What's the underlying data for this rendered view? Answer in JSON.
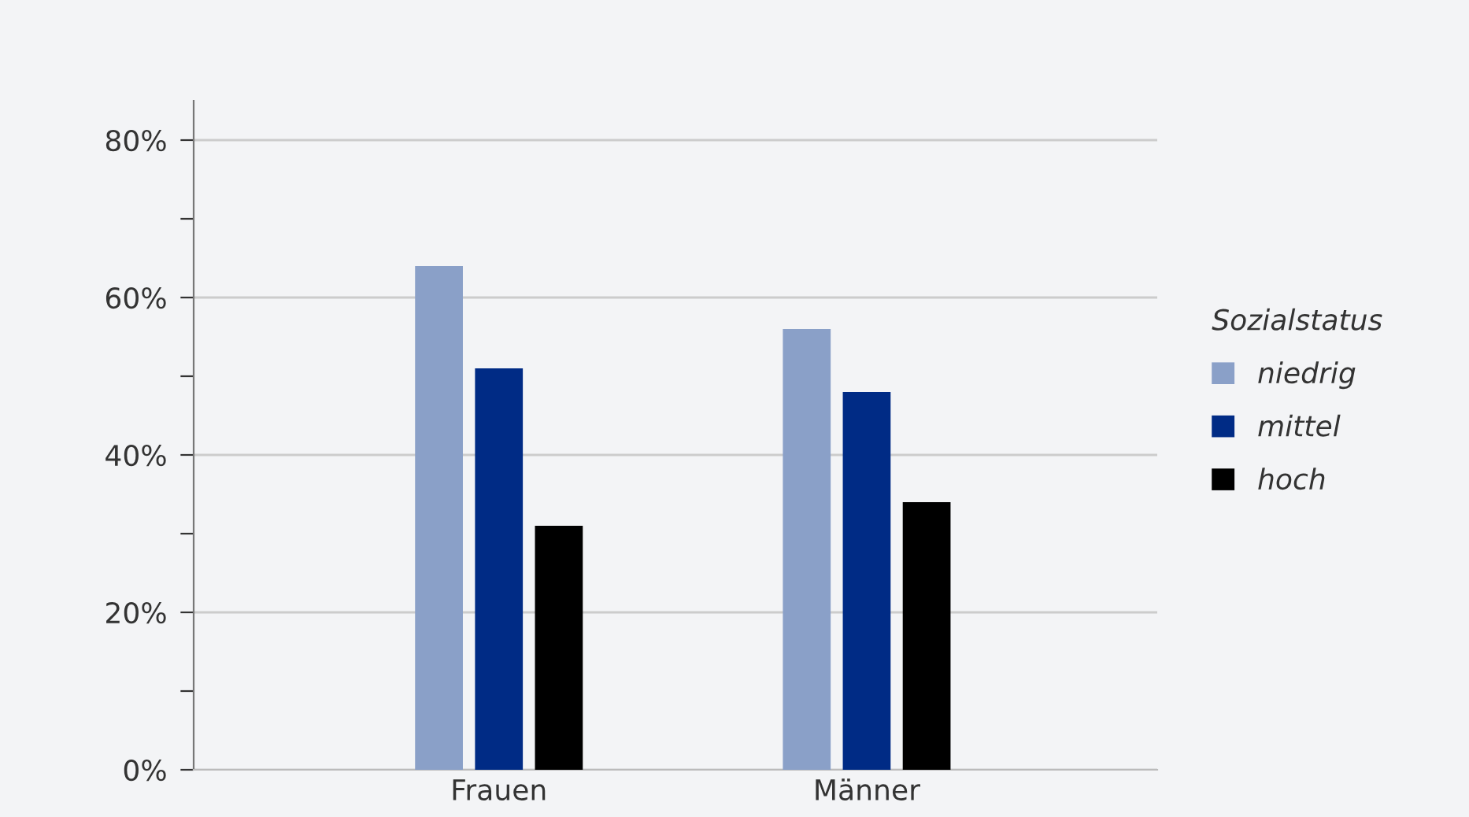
{
  "chart_data": {
    "type": "bar",
    "categories": [
      "Frauen",
      "Männer"
    ],
    "series": [
      {
        "name": "niedrig",
        "color": "#8aa0c8",
        "values": [
          64,
          56
        ]
      },
      {
        "name": "mittel",
        "color": "#002b85",
        "values": [
          51,
          48
        ]
      },
      {
        "name": "hoch",
        "color": "#000000",
        "values": [
          31,
          34
        ]
      }
    ],
    "legend_title": "Sozialstatus",
    "legend": "right",
    "ylim": [
      0,
      85
    ],
    "yticks": [
      {
        "value": 0,
        "label": "0%"
      },
      {
        "value": 10,
        "label": null
      },
      {
        "value": 20,
        "label": "20%"
      },
      {
        "value": 30,
        "label": null
      },
      {
        "value": 40,
        "label": "40%"
      },
      {
        "value": 50,
        "label": null
      },
      {
        "value": 60,
        "label": "60%"
      },
      {
        "value": 70,
        "label": null
      },
      {
        "value": 80,
        "label": "80%"
      }
    ],
    "grid": "y"
  }
}
